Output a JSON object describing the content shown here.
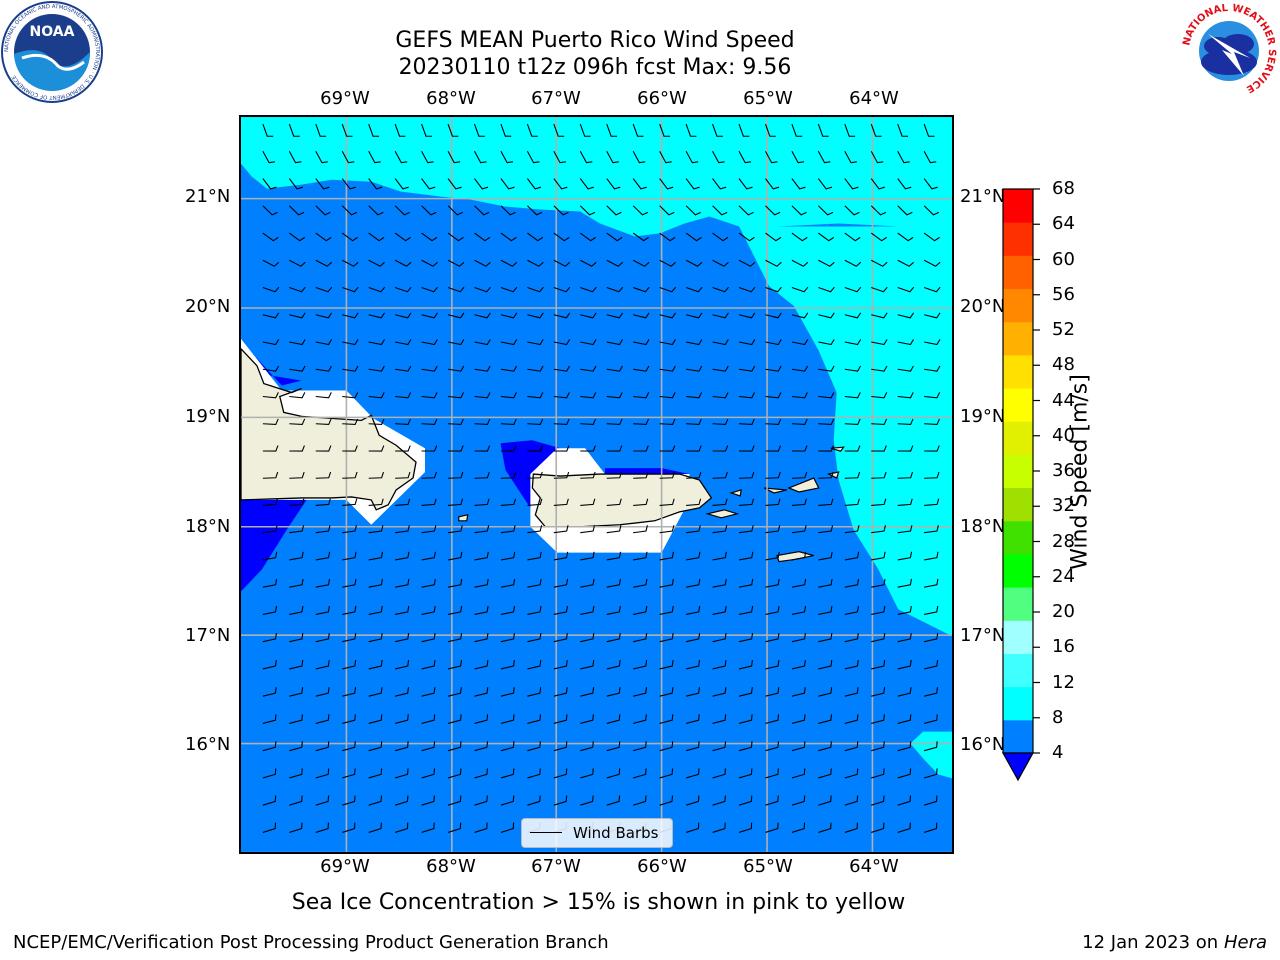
{
  "header": {
    "title_line1": "GEFS MEAN Puerto Rico Wind Speed",
    "title_line2": "20230110 t12z 096h fcst   Max: 9.56"
  },
  "logos": {
    "noaa_text": "NOAA",
    "noaa_ring_text": "NATIONAL OCEANIC AND ATMOSPHERIC ADMINISTRATION · U.S. DEPARTMENT OF COMMERCE",
    "nws_ring_text": "NATIONAL WEATHER SERVICE"
  },
  "map": {
    "lon_labels": [
      "69°W",
      "68°W",
      "67°W",
      "66°W",
      "65°W",
      "64°W"
    ],
    "lat_labels": [
      "21°N",
      "20°N",
      "19°N",
      "18°N",
      "17°N",
      "16°N"
    ],
    "legend_label": "Wind Barbs",
    "colors": {
      "below4": "#0000ff",
      "4_8": "#0080ff",
      "8_12": "#00ffff",
      "land": "#efefdb",
      "masked": "#ffffff",
      "grid": "#b0b0b0"
    }
  },
  "colorbar": {
    "label": "Wind Speed [m/s]",
    "ticks": [
      "68",
      "64",
      "60",
      "56",
      "52",
      "48",
      "44",
      "40",
      "36",
      "32",
      "28",
      "24",
      "20",
      "16",
      "12",
      "8",
      "4"
    ],
    "bands_bottom_to_top": [
      "#0080ff",
      "#00ffff",
      "#40ffff",
      "#a0ffff",
      "#50ff80",
      "#00ff00",
      "#40e000",
      "#a0e000",
      "#c8ff00",
      "#e0f000",
      "#ffff00",
      "#ffe000",
      "#ffb000",
      "#ff8800",
      "#ff6000",
      "#ff3000",
      "#ff0000"
    ],
    "under_color": "#0000ff"
  },
  "footer": {
    "note": "Sea Ice Concentration > 15% is shown in pink to yellow",
    "left": "NCEP/EMC/Verification Post Processing Product Generation Branch",
    "right_prefix": "12 Jan 2023 on ",
    "right_italic": "Hera"
  }
}
